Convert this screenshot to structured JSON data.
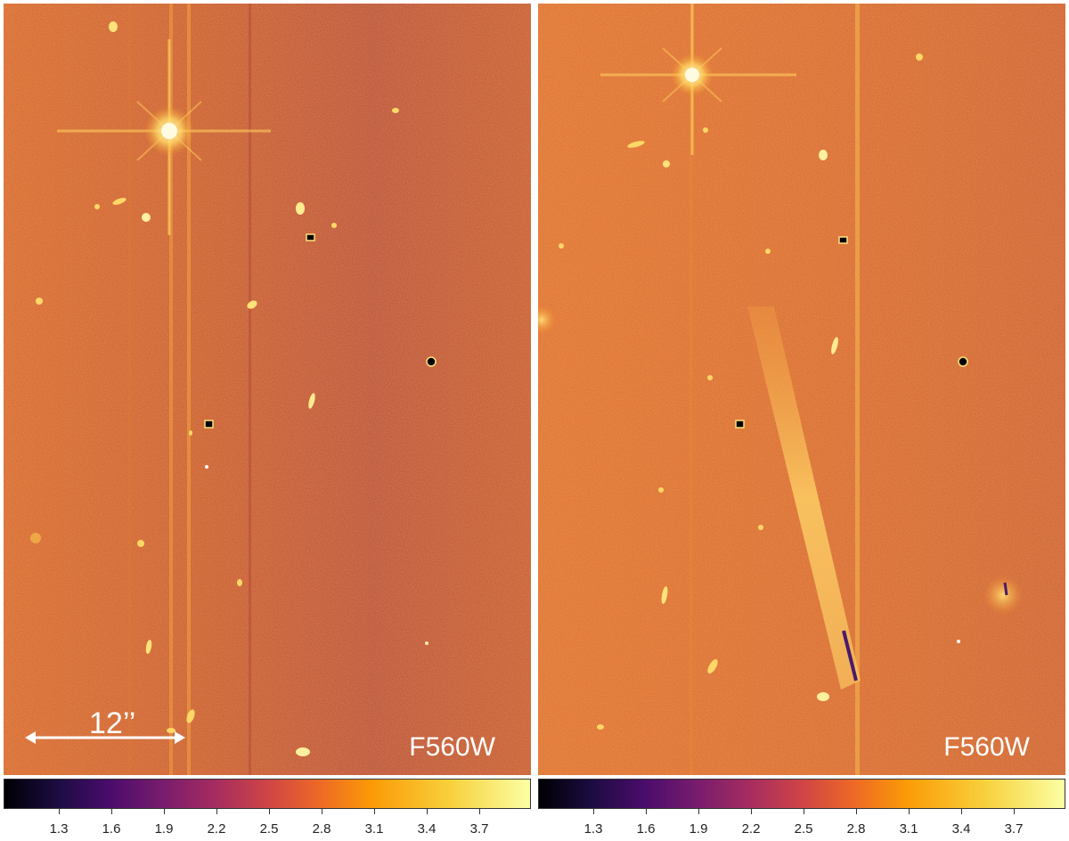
{
  "panels": [
    {
      "filter": "F560W",
      "scale_bar": "12’’",
      "has_scale_bar": true
    },
    {
      "filter": "F560W",
      "scale_bar": "",
      "has_scale_bar": false
    }
  ],
  "colorbar": {
    "colormap": "inferno",
    "ticks": [
      "1.3",
      "1.6",
      "1.9",
      "2.2",
      "2.5",
      "2.8",
      "3.1",
      "3.4",
      "3.7"
    ]
  },
  "colors": {
    "background": "#c8562a",
    "source": "#ffe9a0",
    "text": "#ffffff"
  }
}
